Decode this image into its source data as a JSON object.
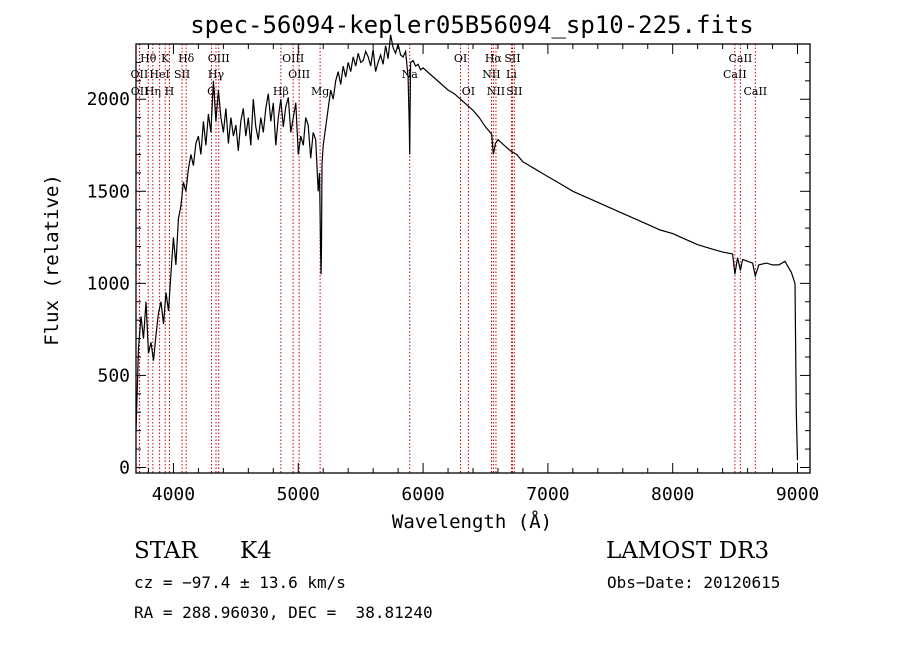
{
  "chart_data": {
    "type": "line",
    "title": "spec-56094-kepler05B56094_sp10-225.fits",
    "xlabel": "Wavelength (Å)",
    "ylabel": "Flux (relative)",
    "xlim": [
      3700,
      9100
    ],
    "ylim": [
      -30,
      2300
    ],
    "xticks": [
      4000,
      5000,
      6000,
      7000,
      8000,
      9000
    ],
    "yticks": [
      0,
      500,
      1000,
      1500,
      2000
    ],
    "line_color": "#000000",
    "marker_color": "#cc0000",
    "spectrum": {
      "x": [
        3700,
        3720,
        3740,
        3760,
        3780,
        3800,
        3820,
        3840,
        3860,
        3880,
        3900,
        3920,
        3940,
        3960,
        3980,
        4000,
        4020,
        4040,
        4060,
        4080,
        4100,
        4120,
        4140,
        4160,
        4180,
        4200,
        4220,
        4240,
        4260,
        4280,
        4300,
        4320,
        4340,
        4360,
        4380,
        4400,
        4420,
        4440,
        4460,
        4480,
        4500,
        4520,
        4540,
        4560,
        4580,
        4600,
        4620,
        4640,
        4660,
        4680,
        4700,
        4720,
        4740,
        4760,
        4780,
        4800,
        4820,
        4840,
        4860,
        4880,
        4900,
        4920,
        4940,
        4960,
        4980,
        5000,
        5020,
        5040,
        5060,
        5080,
        5100,
        5120,
        5140,
        5160,
        5170,
        5180,
        5183,
        5186,
        5190,
        5200,
        5220,
        5240,
        5260,
        5280,
        5300,
        5320,
        5340,
        5360,
        5380,
        5400,
        5420,
        5440,
        5460,
        5480,
        5500,
        5520,
        5540,
        5560,
        5580,
        5600,
        5620,
        5640,
        5660,
        5680,
        5700,
        5720,
        5740,
        5760,
        5780,
        5800,
        5820,
        5840,
        5860,
        5880,
        5890,
        5893,
        5896,
        5900,
        5920,
        5940,
        5960,
        5980,
        6000,
        6050,
        6100,
        6150,
        6200,
        6250,
        6300,
        6350,
        6400,
        6450,
        6500,
        6550,
        6563,
        6580,
        6600,
        6650,
        6700,
        6750,
        6800,
        6850,
        6900,
        6950,
        7000,
        7100,
        7200,
        7300,
        7400,
        7500,
        7600,
        7700,
        7800,
        7900,
        8000,
        8100,
        8200,
        8300,
        8400,
        8480,
        8498,
        8520,
        8542,
        8560,
        8600,
        8640,
        8662,
        8690,
        8750,
        8800,
        8850,
        8900,
        8950,
        8980,
        8990,
        9000
      ],
      "y": [
        200,
        650,
        820,
        700,
        900,
        620,
        680,
        580,
        720,
        840,
        900,
        780,
        950,
        850,
        1050,
        1250,
        1100,
        1350,
        1420,
        1550,
        1500,
        1620,
        1700,
        1640,
        1760,
        1800,
        1700,
        1880,
        1750,
        1920,
        1820,
        2100,
        1880,
        2050,
        1900,
        1820,
        1950,
        1760,
        1900,
        1800,
        1860,
        1720,
        1880,
        1950,
        1800,
        1900,
        1750,
        2000,
        1850,
        1780,
        1900,
        1820,
        1950,
        2030,
        1880,
        1980,
        1750,
        1900,
        2000,
        1850,
        1960,
        2010,
        1820,
        1900,
        1980,
        1700,
        1800,
        1750,
        1900,
        1860,
        1680,
        1820,
        1780,
        1500,
        1600,
        1150,
        1050,
        1200,
        1650,
        1750,
        1850,
        1950,
        2050,
        2000,
        2100,
        2150,
        2080,
        2180,
        2120,
        2200,
        2150,
        2230,
        2180,
        2250,
        2200,
        2210,
        2260,
        2230,
        2180,
        2270,
        2150,
        2200,
        2240,
        2190,
        2290,
        2220,
        2350,
        2280,
        2250,
        2300,
        2240,
        2230,
        2260,
        2120,
        1850,
        1700,
        1950,
        2200,
        2210,
        2180,
        2190,
        2160,
        2170,
        2140,
        2110,
        2080,
        2050,
        2030,
        2000,
        1970,
        1940,
        1900,
        1850,
        1810,
        1700,
        1760,
        1780,
        1750,
        1720,
        1700,
        1660,
        1640,
        1620,
        1600,
        1580,
        1540,
        1500,
        1470,
        1440,
        1410,
        1380,
        1350,
        1320,
        1290,
        1270,
        1240,
        1210,
        1190,
        1170,
        1160,
        1050,
        1140,
        1070,
        1130,
        1120,
        1110,
        1040,
        1100,
        1110,
        1100,
        1100,
        1120,
        1060,
        1000,
        300,
        40
      ]
    },
    "line_markers": [
      {
        "label": "Hθ",
        "x": 3798,
        "row": 1,
        "anchor": "middle"
      },
      {
        "label": "K",
        "x": 3934,
        "row": 1,
        "anchor": "middle"
      },
      {
        "label": "Hδ",
        "x": 4102,
        "row": 1,
        "anchor": "middle"
      },
      {
        "label": "OIII",
        "x": 4363,
        "row": 1,
        "anchor": "middle"
      },
      {
        "label": "OIII",
        "x": 4959,
        "row": 1,
        "anchor": "middle"
      },
      {
        "label": "OI",
        "x": 6300,
        "row": 1,
        "anchor": "middle"
      },
      {
        "label": "Hα",
        "x": 6563,
        "row": 1,
        "anchor": "middle"
      },
      {
        "label": "SII",
        "x": 6716,
        "row": 1,
        "anchor": "middle"
      },
      {
        "label": "CaII",
        "x": 8542,
        "row": 1,
        "anchor": "middle"
      },
      {
        "label": "OII",
        "x": 3727,
        "row": 2,
        "anchor": "middle"
      },
      {
        "label": "HeI",
        "x": 3889,
        "row": 2,
        "anchor": "middle"
      },
      {
        "label": "SII",
        "x": 4069,
        "row": 2,
        "anchor": "middle"
      },
      {
        "label": "Hγ",
        "x": 4341,
        "row": 2,
        "anchor": "middle"
      },
      {
        "label": "OIII",
        "x": 5007,
        "row": 2,
        "anchor": "middle"
      },
      {
        "label": "Na",
        "x": 5893,
        "row": 2,
        "anchor": "middle"
      },
      {
        "label": "NII",
        "x": 6548,
        "row": 2,
        "anchor": "middle"
      },
      {
        "label": "Li",
        "x": 6708,
        "row": 2,
        "anchor": "middle"
      },
      {
        "label": "CaII",
        "x": 8498,
        "row": 2,
        "anchor": "middle"
      },
      {
        "label": "OII",
        "x": 3729,
        "row": 3,
        "anchor": "middle"
      },
      {
        "label": "Hη",
        "x": 3835,
        "row": 3,
        "anchor": "middle"
      },
      {
        "label": "H",
        "x": 3968,
        "row": 3,
        "anchor": "middle"
      },
      {
        "label": "G",
        "x": 4305,
        "row": 3,
        "anchor": "middle"
      },
      {
        "label": "Hβ",
        "x": 4861,
        "row": 3,
        "anchor": "middle"
      },
      {
        "label": "Mg",
        "x": 5175,
        "row": 3,
        "anchor": "middle"
      },
      {
        "label": "OI",
        "x": 6363,
        "row": 3,
        "anchor": "middle"
      },
      {
        "label": "NII",
        "x": 6584,
        "row": 3,
        "anchor": "middle"
      },
      {
        "label": "SII",
        "x": 6731,
        "row": 3,
        "anchor": "middle"
      },
      {
        "label": "CaII",
        "x": 8662,
        "row": 3,
        "anchor": "middle"
      }
    ]
  },
  "info": {
    "object_class": "STAR",
    "subclass": "K4",
    "survey": "LAMOST DR3",
    "cz": "cz = −97.4 ± 13.6 km/s",
    "obs_date": "Obs−Date: 20120615",
    "coords": "RA = 288.96030, DEC =  38.81240"
  }
}
